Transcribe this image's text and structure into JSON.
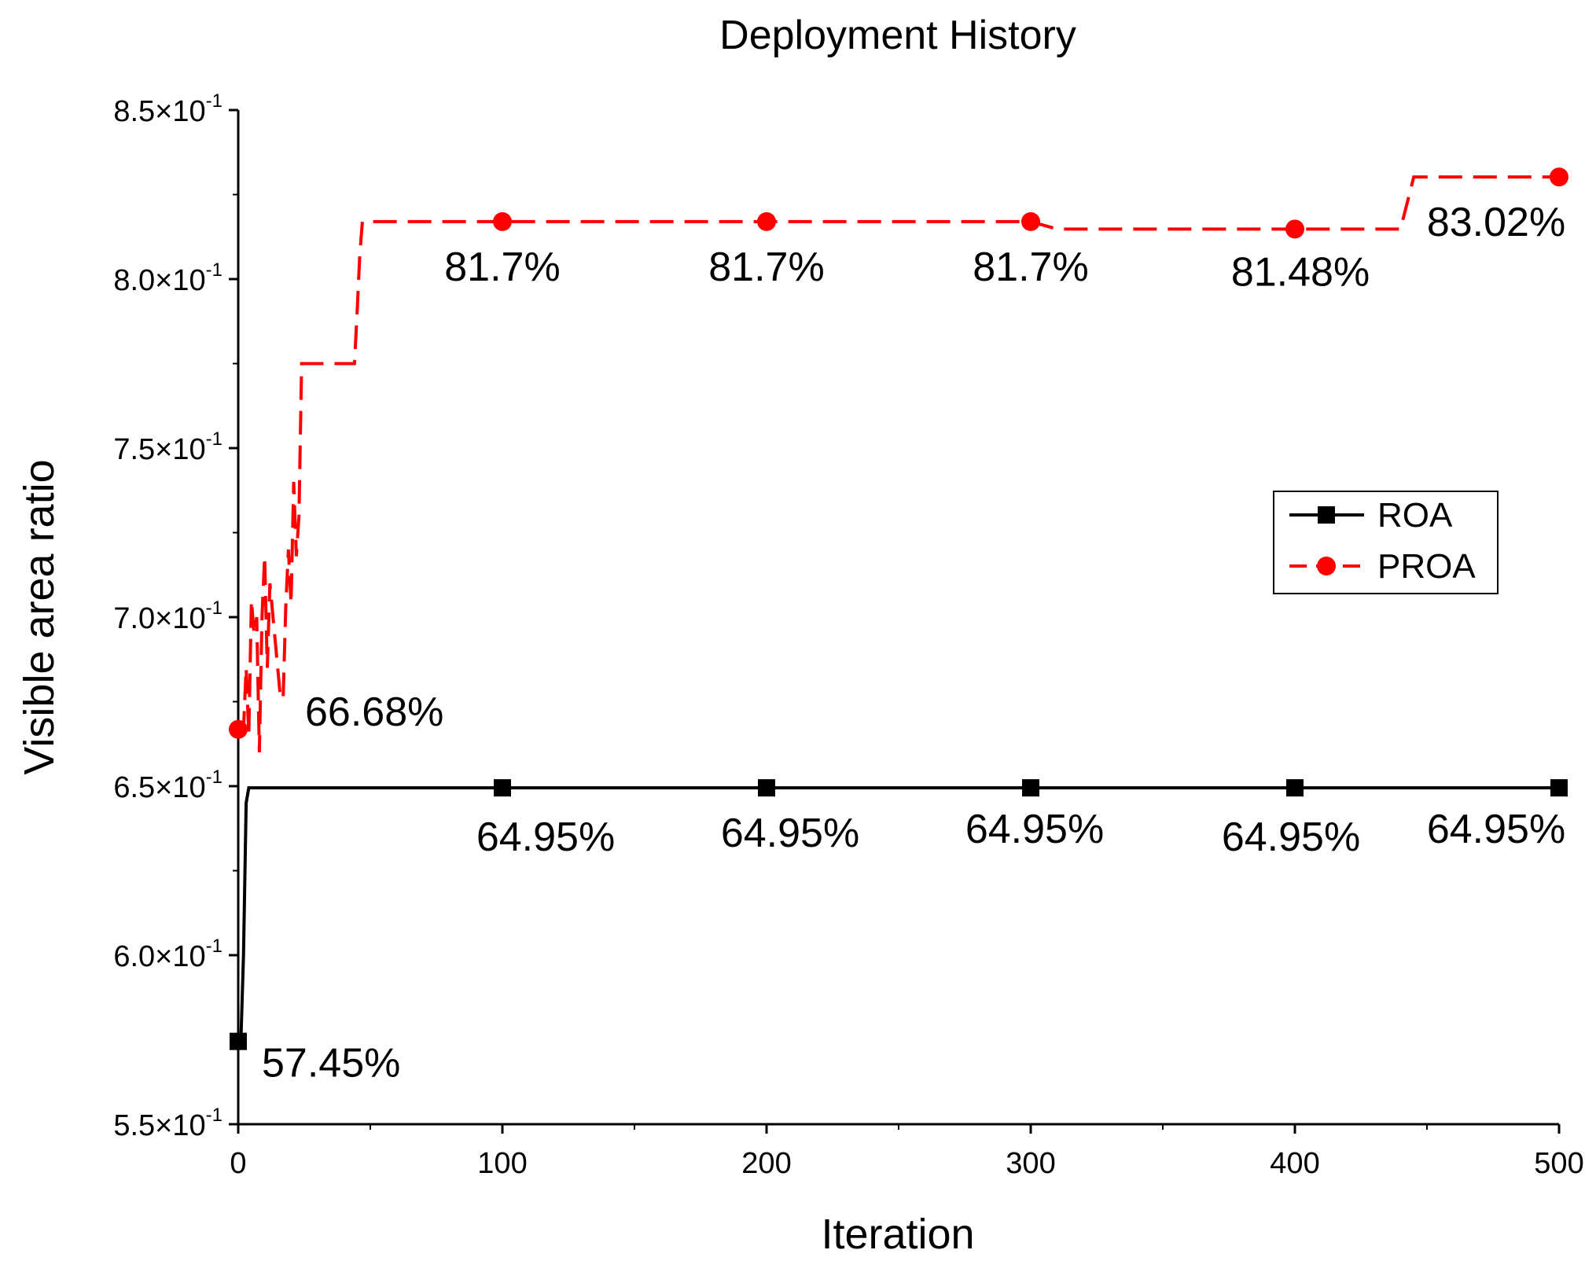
{
  "chart_data": {
    "type": "line",
    "title": "Deployment History",
    "xlabel": "Iteration",
    "ylabel": "Visible area ratio",
    "xlim": [
      0,
      500
    ],
    "ylim": [
      0.55,
      0.85
    ],
    "x_ticks": [
      0,
      100,
      200,
      300,
      400,
      500
    ],
    "x_tick_labels": [
      "0",
      "100",
      "200",
      "300",
      "400",
      "500"
    ],
    "y_ticks": [
      0.55,
      0.6,
      0.65,
      0.7,
      0.75,
      0.8,
      0.85
    ],
    "y_tick_labels": [
      {
        "mantissa": "5.5",
        "base": "×10",
        "exponent": "-1"
      },
      {
        "mantissa": "6.0",
        "base": "×10",
        "exponent": "-1"
      },
      {
        "mantissa": "6.5",
        "base": "×10",
        "exponent": "-1"
      },
      {
        "mantissa": "7.0",
        "base": "×10",
        "exponent": "-1"
      },
      {
        "mantissa": "7.5",
        "base": "×10",
        "exponent": "-1"
      },
      {
        "mantissa": "8.0",
        "base": "×10",
        "exponent": "-1"
      },
      {
        "mantissa": "8.5",
        "base": "×10",
        "exponent": "-1"
      }
    ],
    "grid": false,
    "legend_position": "right-middle",
    "series": [
      {
        "name": "ROA",
        "color": "#000000",
        "style": "solid",
        "marker": "square",
        "line_x": [
          0,
          1,
          2,
          3,
          4,
          6,
          500
        ],
        "line_y": [
          0.5745,
          0.5745,
          0.6,
          0.645,
          0.6495,
          0.6495,
          0.6495
        ],
        "marker_x": [
          0,
          100,
          200,
          300,
          400,
          500
        ],
        "marker_y": [
          0.5745,
          0.6495,
          0.6495,
          0.6495,
          0.6495,
          0.6495
        ],
        "labels": [
          "57.45%",
          "64.95%",
          "64.95%",
          "64.95%",
          "64.95%",
          "64.95%"
        ]
      },
      {
        "name": "PROA",
        "color": "#ff0000",
        "style": "dashed",
        "marker": "circle",
        "line_x": [
          0,
          2,
          3,
          4,
          5,
          6,
          7,
          8,
          9,
          10,
          11,
          12,
          16,
          17,
          18,
          19,
          20,
          21,
          22,
          23,
          24,
          25,
          26,
          27,
          28,
          44,
          45,
          46,
          47,
          48,
          100,
          300,
          310,
          400,
          440,
          445,
          500
        ],
        "line_y": [
          0.6668,
          0.6668,
          0.685,
          0.665,
          0.705,
          0.695,
          0.7,
          0.66,
          0.7,
          0.718,
          0.685,
          0.71,
          0.676,
          0.676,
          0.703,
          0.72,
          0.704,
          0.74,
          0.718,
          0.73,
          0.775,
          0.775,
          0.775,
          0.775,
          0.775,
          0.775,
          0.79,
          0.807,
          0.817,
          0.817,
          0.817,
          0.817,
          0.8148,
          0.8148,
          0.8148,
          0.8302,
          0.8302
        ],
        "marker_x": [
          0,
          100,
          200,
          300,
          400,
          500
        ],
        "marker_y": [
          0.6668,
          0.817,
          0.817,
          0.817,
          0.8148,
          0.8302
        ],
        "labels": [
          "66.68%",
          "81.7%",
          "81.7%",
          "81.7%",
          "81.48%",
          "83.02%"
        ]
      }
    ]
  }
}
